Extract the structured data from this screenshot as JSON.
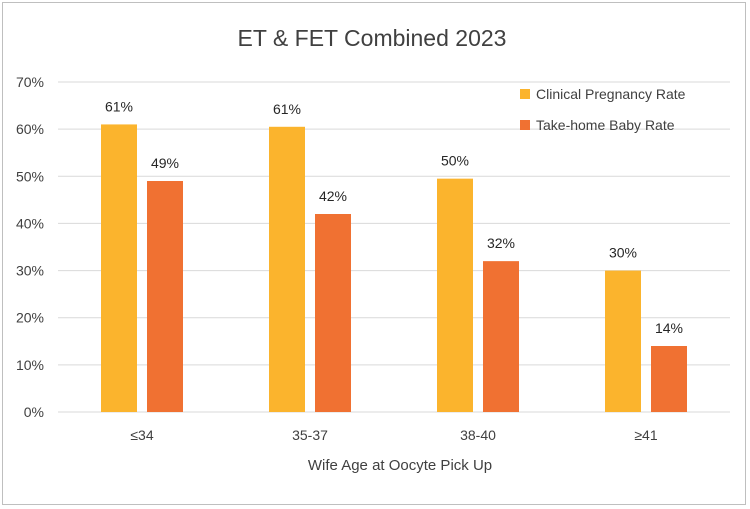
{
  "chart_data": {
    "type": "bar",
    "title": "ET & FET Combined 2023",
    "xlabel": "Wife Age at Oocyte Pick Up",
    "ylabel": "",
    "categories": [
      "≤34",
      "35-37",
      "38-40",
      "≥41"
    ],
    "series": [
      {
        "name": "Clinical Pregnancy Rate",
        "values": [
          61,
          60.5,
          49.5,
          30
        ],
        "labels": [
          "61%",
          "61%",
          "50%",
          "30%"
        ],
        "color": "#FBB42D"
      },
      {
        "name": "Take-home Baby Rate",
        "values": [
          49,
          42,
          32,
          14
        ],
        "labels": [
          "49%",
          "42%",
          "32%",
          "14%"
        ],
        "color": "#F07132"
      }
    ],
    "ylim": [
      0,
      70
    ],
    "yticks": [
      0,
      10,
      20,
      30,
      40,
      50,
      60,
      70
    ],
    "ytick_labels": [
      "0%",
      "10%",
      "20%",
      "30%",
      "40%",
      "50%",
      "60%",
      "70%"
    ],
    "grid": true,
    "legend_position": "top-right"
  }
}
